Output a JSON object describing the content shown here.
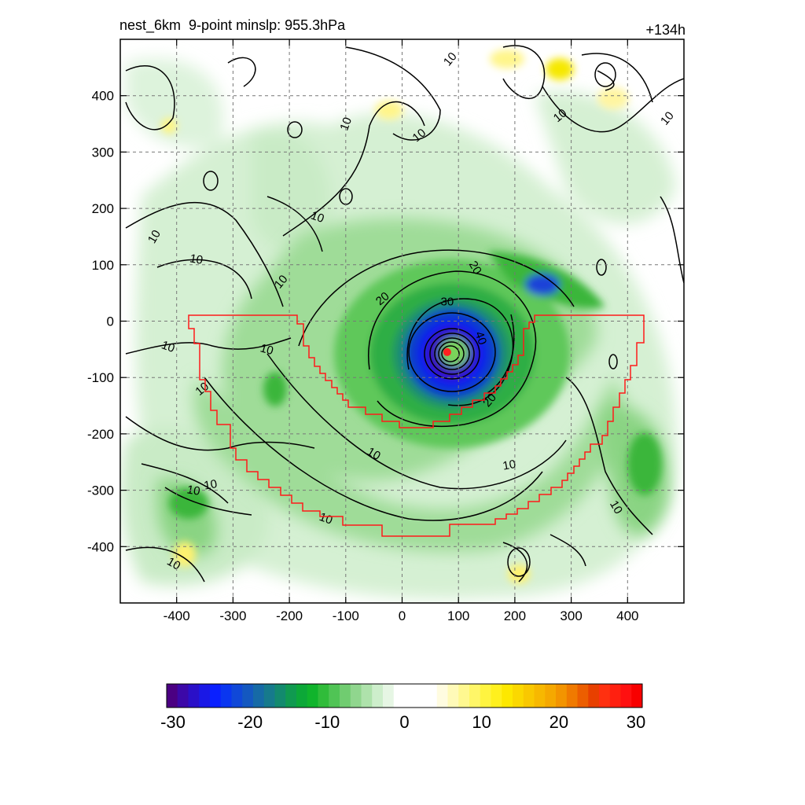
{
  "header": {
    "title": "nest_6km  9-point minslp: 955.3hPa",
    "time_label": "+134h"
  },
  "colors": {
    "domain_outline": "#ff1a1a",
    "storm_center": "#ff2020",
    "contour": "#000000",
    "grid": "#888888"
  },
  "chart_data": {
    "type": "heatmap",
    "xlim": [
      -500,
      500
    ],
    "ylim": [
      -500,
      500
    ],
    "x_ticks": [
      -400,
      -300,
      -200,
      -100,
      0,
      100,
      200,
      300,
      400
    ],
    "y_ticks": [
      400,
      300,
      200,
      100,
      0,
      -100,
      -200,
      -300,
      -400
    ],
    "grid": true,
    "contour_labels": [
      {
        "text": "10",
        "x": 85,
        "y": 465,
        "rot": -50
      },
      {
        "text": "10",
        "x": 280,
        "y": 365,
        "rot": -40
      },
      {
        "text": "10",
        "x": 470,
        "y": 360,
        "rot": -50
      },
      {
        "text": "10",
        "x": -100,
        "y": 350,
        "rot": -70
      },
      {
        "text": "10",
        "x": 30,
        "y": 330,
        "rot": -40
      },
      {
        "text": "10",
        "x": -150,
        "y": 185,
        "rot": 20
      },
      {
        "text": "10",
        "x": -440,
        "y": 150,
        "rot": -60
      },
      {
        "text": "10",
        "x": -365,
        "y": 110,
        "rot": 10
      },
      {
        "text": "10",
        "x": -215,
        "y": 70,
        "rot": -50
      },
      {
        "text": "20",
        "x": 130,
        "y": 95,
        "rot": 60
      },
      {
        "text": "20",
        "x": -35,
        "y": 40,
        "rot": -40
      },
      {
        "text": "30",
        "x": 80,
        "y": 35,
        "rot": 0
      },
      {
        "text": "40",
        "x": 140,
        "y": -30,
        "rot": 70
      },
      {
        "text": "10",
        "x": -415,
        "y": -45,
        "rot": 20
      },
      {
        "text": "10",
        "x": -240,
        "y": -50,
        "rot": 15
      },
      {
        "text": "10",
        "x": -355,
        "y": -120,
        "rot": -40
      },
      {
        "text": "20",
        "x": 155,
        "y": -140,
        "rot": -50
      },
      {
        "text": "10",
        "x": -50,
        "y": -235,
        "rot": 30
      },
      {
        "text": "10",
        "x": 190,
        "y": -255,
        "rot": -10
      },
      {
        "text": "10",
        "x": -370,
        "y": -300,
        "rot": 10
      },
      {
        "text": "10",
        "x": -340,
        "y": -290,
        "rot": -10
      },
      {
        "text": "10",
        "x": -135,
        "y": -350,
        "rot": 20
      },
      {
        "text": "10",
        "x": 380,
        "y": -330,
        "rot": 60
      },
      {
        "text": "10",
        "x": -405,
        "y": -430,
        "rot": 30
      }
    ],
    "storm_center": {
      "x": 80,
      "y": -55
    },
    "colorbar": {
      "ticks": [
        "-30",
        "-20",
        "-10",
        "0",
        "10",
        "20",
        "30"
      ],
      "range": [
        -30,
        30
      ]
    }
  }
}
